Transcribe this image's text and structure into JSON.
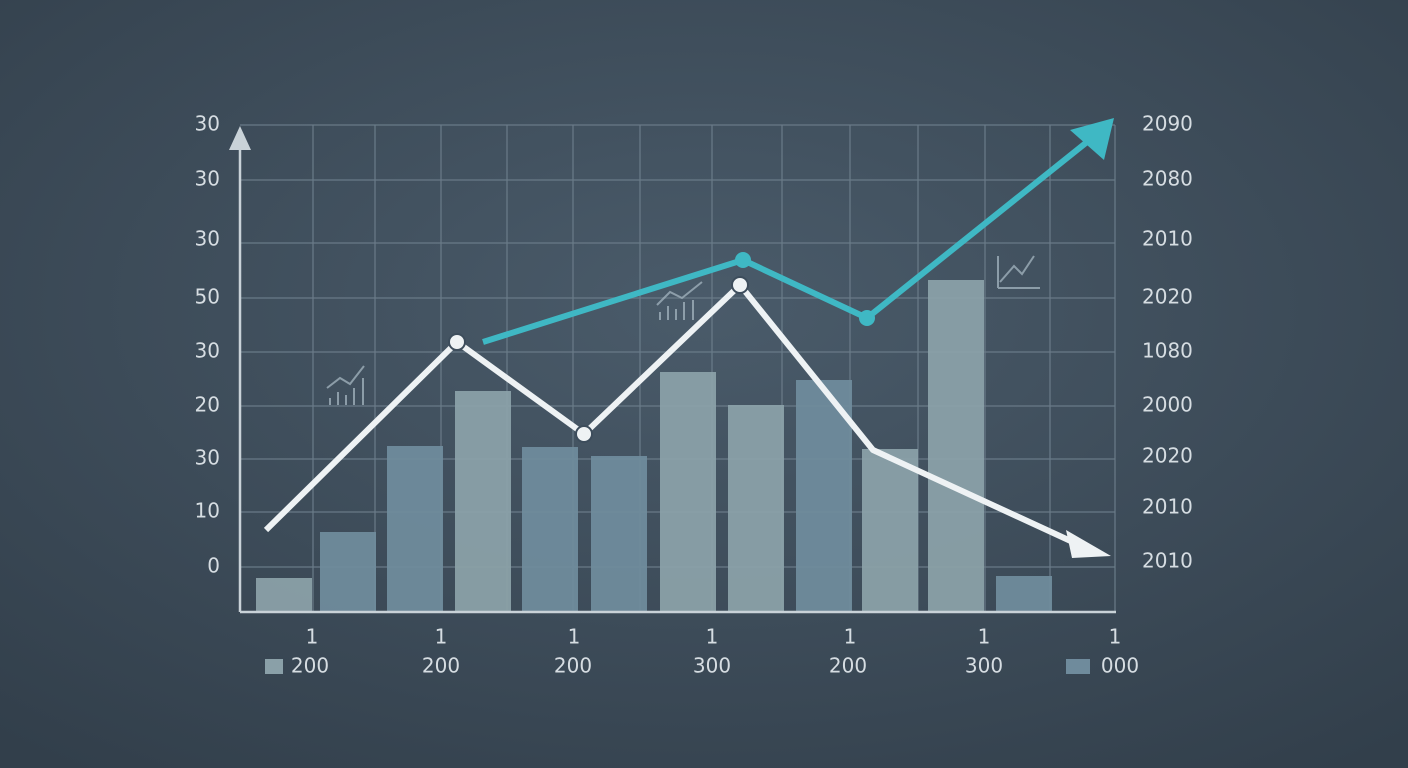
{
  "left_axis_labels": [
    "30",
    "30",
    "30",
    "50",
    "30",
    "20",
    "30",
    "10",
    "0"
  ],
  "right_axis_labels": [
    "2090",
    "2080",
    "2010",
    "2020",
    "1080",
    "2000",
    "2020",
    "2010",
    "2010"
  ],
  "x_labels_top": [
    "1",
    "1",
    "1",
    "1",
    "1",
    "1",
    "1"
  ],
  "x_labels_bottom": [
    "200",
    "200",
    "200",
    "300",
    "200",
    "300",
    "000"
  ]
}
